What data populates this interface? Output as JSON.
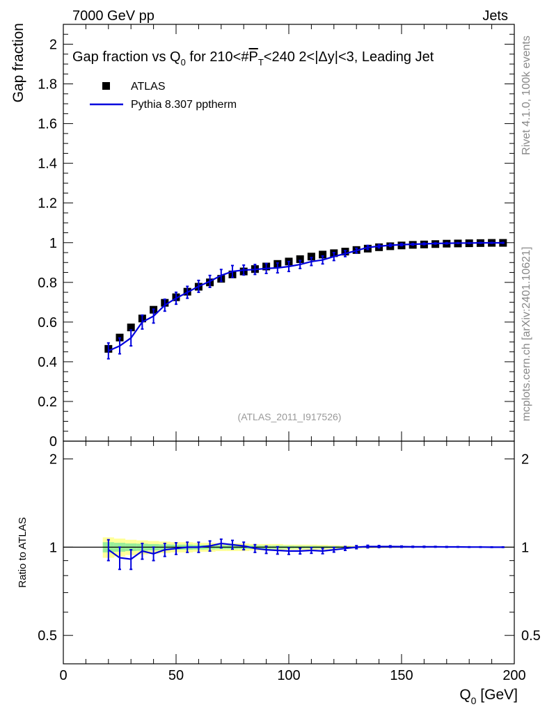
{
  "header": {
    "energy_label": "7000 GeV pp",
    "category_label": "Jets"
  },
  "side_labels": {
    "rivet": "Rivet 4.1.0,  100k events",
    "mcplots": "mcplots.cern.ch [arXiv:2401.10621]"
  },
  "chart_data": [
    {
      "type": "scatter",
      "panel": "main",
      "title": "Gap fraction vs Q0 for 210<#P̅T<240  2<|Δy|<3, Leading Jet",
      "title_parts": {
        "pre": "Gap fraction vs Q",
        "q_sub": "0",
        "mid": " for 210<#",
        "p": "P",
        "p_sub": "T",
        "post": "<240  2<|Δy|<3, Leading Jet"
      },
      "ylabel": "Gap fraction",
      "xlabel_main": "Q",
      "xlabel_sub": "0",
      "xlabel_unit": " [GeV]",
      "xlim": [
        0,
        200
      ],
      "ylim": [
        0,
        2.1
      ],
      "y_ticks": [
        0,
        0.2,
        0.4,
        0.6,
        0.8,
        1,
        1.2,
        1.4,
        1.6,
        1.8,
        2
      ],
      "y_tick_labels": [
        "0",
        "0.2",
        "0.4",
        "0.6",
        "0.8",
        "1",
        "1.2",
        "1.4",
        "1.6",
        "1.8",
        "2"
      ],
      "x_ticks": [
        0,
        50,
        100,
        150,
        200
      ],
      "x_tick_labels": [
        "0",
        "50",
        "100",
        "150",
        "200"
      ],
      "watermark": "(ATLAS_2011_I917526)",
      "legend": [
        {
          "label": "ATLAS",
          "style": "marker",
          "color": "#000000"
        },
        {
          "label": "Pythia 8.307 pptherm",
          "style": "line",
          "color": "#0000dd"
        }
      ],
      "x": [
        20,
        25,
        30,
        35,
        40,
        45,
        50,
        55,
        60,
        65,
        70,
        75,
        80,
        85,
        90,
        95,
        100,
        105,
        110,
        115,
        120,
        125,
        130,
        135,
        140,
        145,
        150,
        155,
        160,
        165,
        170,
        175,
        180,
        185,
        190,
        195
      ],
      "series": [
        {
          "name": "ATLAS",
          "color": "#000000",
          "values": [
            0.465,
            0.522,
            0.573,
            0.618,
            0.662,
            0.697,
            0.725,
            0.753,
            0.778,
            0.8,
            0.818,
            0.84,
            0.855,
            0.867,
            0.88,
            0.893,
            0.905,
            0.917,
            0.93,
            0.94,
            0.947,
            0.955,
            0.963,
            0.97,
            0.977,
            0.982,
            0.986,
            0.989,
            0.991,
            0.993,
            0.995,
            0.996,
            0.997,
            0.998,
            0.999,
            0.999
          ]
        },
        {
          "name": "Pythia 8.307 pptherm",
          "color": "#0000dd",
          "values": [
            0.455,
            0.48,
            0.52,
            0.6,
            0.63,
            0.685,
            0.72,
            0.75,
            0.78,
            0.805,
            0.835,
            0.855,
            0.862,
            0.865,
            0.87,
            0.873,
            0.88,
            0.89,
            0.905,
            0.913,
            0.93,
            0.945,
            0.96,
            0.976,
            0.982,
            0.987,
            0.99,
            0.992,
            0.994,
            0.996,
            0.997,
            0.998,
            0.998,
            0.999,
            0.999,
            0.999
          ],
          "errors": [
            0.04,
            0.04,
            0.04,
            0.035,
            0.035,
            0.03,
            0.03,
            0.03,
            0.03,
            0.03,
            0.03,
            0.03,
            0.025,
            0.025,
            0.025,
            0.025,
            0.025,
            0.02,
            0.02,
            0.02,
            0.02,
            0.015,
            0.012,
            0.01,
            0.008,
            0.006,
            0.005,
            0.004,
            0.004,
            0.003,
            0.003,
            0.002,
            0.002,
            0.002,
            0.002,
            0.002
          ]
        }
      ]
    },
    {
      "type": "line",
      "panel": "ratio",
      "ylabel": "Ratio to ATLAS",
      "ylim": [
        0.4,
        2.3
      ],
      "y_scale": "log",
      "y_ticks": [
        0.5,
        1,
        2
      ],
      "y_tick_labels": [
        "0.5",
        "1",
        "2"
      ],
      "reference_line": 1,
      "band_colors": {
        "outer": "#ffff99",
        "inner": "#99ee99"
      },
      "x": [
        20,
        25,
        30,
        35,
        40,
        45,
        50,
        55,
        60,
        65,
        70,
        75,
        80,
        85,
        90,
        95,
        100,
        105,
        110,
        115,
        120,
        125,
        130,
        135,
        140,
        145,
        150,
        155,
        160,
        165,
        170,
        175,
        180,
        185,
        190,
        195
      ],
      "band_outer": [
        0.08,
        0.07,
        0.06,
        0.055,
        0.05,
        0.045,
        0.04,
        0.04,
        0.035,
        0.035,
        0.03,
        0.03,
        0.03,
        0.025,
        0.025,
        0.025,
        0.02,
        0.02,
        0.02,
        0.018,
        0.015,
        0.012,
        0.01,
        0.008,
        0.006,
        0.005,
        0.004,
        0.003,
        0.003,
        0.002,
        0.002,
        0.002,
        0.002,
        0.001,
        0.001,
        0.001
      ],
      "band_inner": [
        0.04,
        0.035,
        0.03,
        0.028,
        0.025,
        0.022,
        0.02,
        0.02,
        0.018,
        0.017,
        0.015,
        0.015,
        0.014,
        0.013,
        0.012,
        0.012,
        0.011,
        0.01,
        0.01,
        0.009,
        0.008,
        0.006,
        0.005,
        0.004,
        0.003,
        0.0025,
        0.002,
        0.0015,
        0.0015,
        0.001,
        0.001,
        0.001,
        0.001,
        0.0008,
        0.0008,
        0.0008
      ],
      "series": [
        {
          "name": "Pythia 8.307 pptherm / ATLAS",
          "color": "#0000dd",
          "values": [
            0.98,
            0.92,
            0.91,
            0.97,
            0.95,
            0.98,
            0.99,
            1.0,
            1.0,
            1.01,
            1.03,
            1.02,
            1.01,
            0.99,
            0.98,
            0.975,
            0.97,
            0.97,
            0.975,
            0.97,
            0.98,
            0.99,
            1.0,
            1.005,
            1.005,
            1.005,
            1.004,
            1.003,
            1.003,
            1.003,
            1.002,
            1.002,
            1.001,
            1.001,
            1.0,
            1.0
          ],
          "errors": [
            0.08,
            0.08,
            0.07,
            0.06,
            0.05,
            0.05,
            0.045,
            0.04,
            0.04,
            0.04,
            0.035,
            0.035,
            0.03,
            0.03,
            0.028,
            0.028,
            0.025,
            0.022,
            0.022,
            0.02,
            0.018,
            0.015,
            0.012,
            0.01,
            0.008,
            0.006,
            0.005,
            0.004,
            0.004,
            0.003,
            0.003,
            0.002,
            0.002,
            0.002,
            0.002,
            0.002
          ]
        }
      ]
    }
  ]
}
